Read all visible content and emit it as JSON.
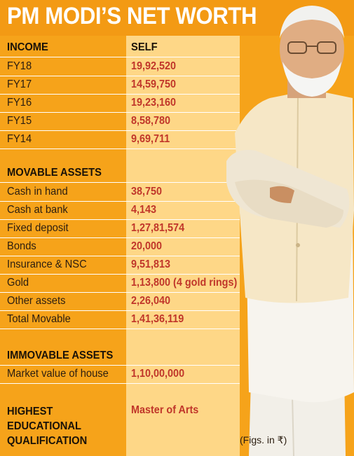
{
  "title": "PM MODI’S NET WORTH",
  "header": {
    "left": "INCOME",
    "right": "SELF"
  },
  "income": [
    {
      "label": "FY18",
      "value": "19,92,520"
    },
    {
      "label": "FY17",
      "value": "14,59,750"
    },
    {
      "label": "FY16",
      "value": "19,23,160"
    },
    {
      "label": "FY15",
      "value": "8,58,780"
    },
    {
      "label": "FY14",
      "value": "9,69,711"
    }
  ],
  "movable": {
    "heading": "MOVABLE ASSETS",
    "rows": [
      {
        "label": "Cash in hand",
        "value": "38,750"
      },
      {
        "label": "Cash at bank",
        "value": "4,143"
      },
      {
        "label": "Fixed deposit",
        "value": "1,27,81,574"
      },
      {
        "label": "Bonds",
        "value": "20,000"
      },
      {
        "label": "Insurance & NSC",
        "value": "9,51,813"
      },
      {
        "label": "Gold",
        "value": "1,13,800 (4 gold rings)"
      },
      {
        "label": "Other assets",
        "value": "2,26,040"
      },
      {
        "label": "Total Movable",
        "value": "1,41,36,119"
      }
    ]
  },
  "immovable": {
    "heading": "IMMOVABLE ASSETS",
    "rows": [
      {
        "label": "Market value of house",
        "value": "1,10,00,000"
      }
    ]
  },
  "qualification": {
    "lines": [
      "HIGHEST",
      "EDUCATIONAL",
      "QUALIFICATION"
    ],
    "value": "Master of Arts"
  },
  "note": "(Figs. in ₹)",
  "colors": {
    "orange": "#f6a31a",
    "title_orange": "#f39a14",
    "light_column": "#fed787",
    "value_red": "#c0362a",
    "title_text": "#ffffff"
  }
}
